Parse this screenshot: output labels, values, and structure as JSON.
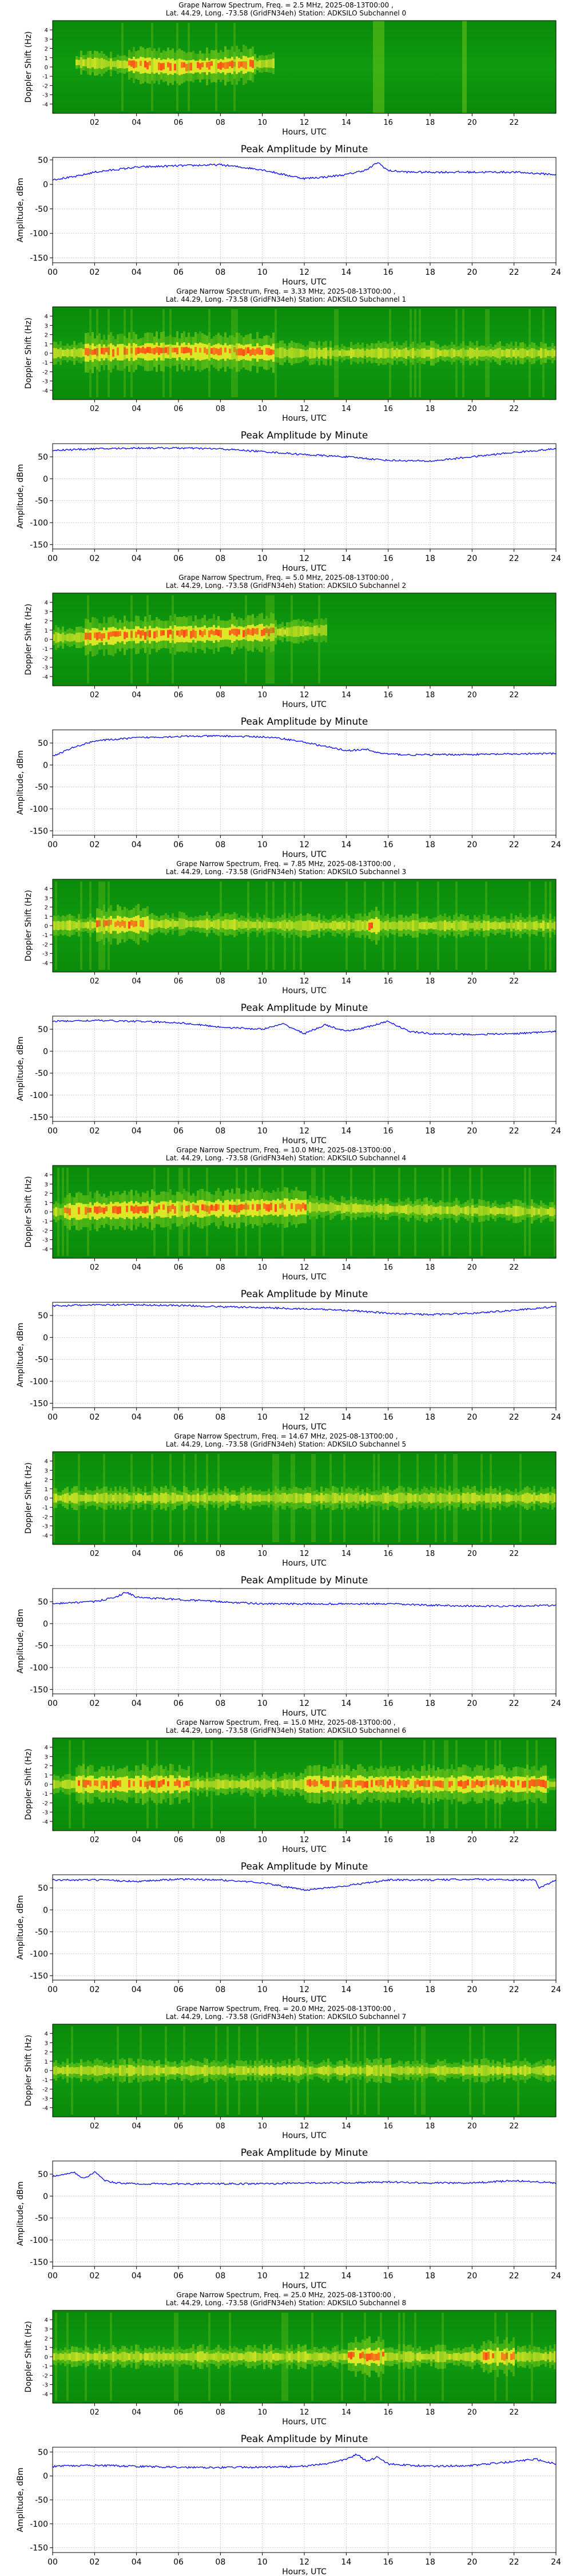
{
  "colors": {
    "spec_low": "#0a7a0a",
    "spec_mid": "#6cc419",
    "spec_high": "#f5f02a",
    "spec_peak": "#ff4b16",
    "line": "#0000ff",
    "grid": "#c8c8c8",
    "axes": "#000000"
  },
  "common": {
    "spec_ylabel": "Doppler Shift (Hz)",
    "spec_xlabel": "Hours, UTC",
    "spec_xticks": [
      "02",
      "04",
      "06",
      "08",
      "10",
      "12",
      "14",
      "16",
      "18",
      "20",
      "22"
    ],
    "spec_yticks": [
      "4",
      "3",
      "2",
      "1",
      "0",
      "-1",
      "-2",
      "-3",
      "-4"
    ],
    "amp_title": "Peak Amplitude by Minute",
    "amp_ylabel": "Amplitude, dBm",
    "amp_xlabel": "Hours, UTC",
    "amp_xticks": [
      "00",
      "02",
      "04",
      "06",
      "08",
      "10",
      "12",
      "14",
      "16",
      "18",
      "20",
      "22",
      "24"
    ],
    "amp_yticks": [
      "50",
      "0",
      "-50",
      "-100",
      "-150"
    ]
  },
  "panels": [
    {
      "title1": "Grape Narrow Spectrum, Freq. = 2.5 MHz, 2025-08-13T00:00 ,",
      "title2": "Lat. 44.29, Long. -73.58 (GridFN34eh) Station: ADKSILO Subchannel 0"
    },
    {
      "title1": "Grape Narrow Spectrum, Freq. = 3.33 MHz, 2025-08-13T00:00 ,",
      "title2": "Lat. 44.29, Long. -73.58 (GridFN34eh) Station: ADKSILO Subchannel 1"
    },
    {
      "title1": "Grape Narrow Spectrum, Freq. = 5.0 MHz, 2025-08-13T00:00 ,",
      "title2": "Lat. 44.29, Long. -73.58 (GridFN34eh) Station: ADKSILO Subchannel 2"
    },
    {
      "title1": "Grape Narrow Spectrum, Freq. = 7.85 MHz, 2025-08-13T00:00 ,",
      "title2": "Lat. 44.29, Long. -73.58 (GridFN34eh) Station: ADKSILO Subchannel 3"
    },
    {
      "title1": "Grape Narrow Spectrum, Freq. = 10.0 MHz, 2025-08-13T00:00 ,",
      "title2": "Lat. 44.29, Long. -73.58 (GridFN34eh) Station: ADKSILO Subchannel 4"
    },
    {
      "title1": "Grape Narrow Spectrum, Freq. = 14.67 MHz, 2025-08-13T00:00 ,",
      "title2": "Lat. 44.29, Long. -73.58 (GridFN34eh) Station: ADKSILO Subchannel 5"
    },
    {
      "title1": "Grape Narrow Spectrum, Freq. = 15.0 MHz, 2025-08-13T00:00 ,",
      "title2": "Lat. 44.29, Long. -73.58 (GridFN34eh) Station: ADKSILO Subchannel 6"
    },
    {
      "title1": "Grape Narrow Spectrum, Freq. = 20.0 MHz, 2025-08-13T00:00 ,",
      "title2": "Lat. 44.29, Long. -73.58 (GridFN34eh) Station: ADKSILO Subchannel 7"
    },
    {
      "title1": "Grape Narrow Spectrum, Freq. = 25.0 MHz, 2025-08-13T00:00 ,",
      "title2": "Lat. 44.29, Long. -73.58 (GridFN34eh) Station: ADKSILO Subchannel 8"
    }
  ],
  "chart_data": [
    {
      "type": "heatmap",
      "title": "Grape Narrow Spectrum, Freq. = 2.5 MHz, 2025-08-13T00:00 , Lat. 44.29, Long. -73.58 (GridFN34eh) Station: ADKSILO Subchannel 0",
      "xlabel": "Hours, UTC",
      "ylabel": "Doppler Shift (Hz)",
      "xlim": [
        0,
        24
      ],
      "ylim": [
        -5,
        5
      ],
      "signal_intervals": [
        [
          1.0,
          10.5
        ]
      ],
      "trace_doppler_hz": [
        [
          1,
          0.5
        ],
        [
          3,
          0.3
        ],
        [
          6,
          0.0
        ],
        [
          8,
          0.1
        ],
        [
          10.5,
          0.4
        ]
      ],
      "peak_intervals": [
        [
          3.5,
          9.5
        ]
      ],
      "interference_intervals": [
        [
          15.2,
          15.8
        ],
        [
          19.5,
          19.7
        ]
      ]
    },
    {
      "type": "line",
      "title": "Peak Amplitude by Minute",
      "xlabel": "Hours, UTC",
      "ylabel": "Amplitude, dBm",
      "xlim": [
        0,
        24
      ],
      "ylim": [
        -160,
        55
      ],
      "grid": true,
      "x": [
        0,
        1,
        2,
        4,
        6,
        8,
        9,
        10,
        11,
        12,
        13,
        14,
        15,
        15.5,
        16,
        17,
        18,
        20,
        22,
        24
      ],
      "y": [
        10,
        15,
        25,
        35,
        38,
        40,
        35,
        30,
        20,
        12,
        15,
        20,
        30,
        45,
        28,
        25,
        25,
        25,
        25,
        20
      ]
    },
    {
      "type": "heatmap",
      "title": "Grape Narrow Spectrum, Freq. = 3.33 MHz, 2025-08-13T00:00 , Lat. 44.29, Long. -73.58 (GridFN34eh) Station: ADKSILO Subchannel 1",
      "xlabel": "Hours, UTC",
      "ylabel": "Doppler Shift (Hz)",
      "xlim": [
        0,
        24
      ],
      "ylim": [
        -5,
        5
      ],
      "signal_intervals": [
        [
          0,
          24
        ]
      ],
      "trace_doppler_hz": [
        [
          0,
          0.0
        ],
        [
          6,
          0.2
        ],
        [
          12,
          0.0
        ],
        [
          18,
          0.0
        ],
        [
          24,
          0.0
        ]
      ],
      "peak_intervals": [
        [
          1.5,
          10.5
        ]
      ],
      "interference_intervals": []
    },
    {
      "type": "line",
      "title": "Peak Amplitude by Minute",
      "xlabel": "Hours, UTC",
      "ylabel": "Amplitude, dBm",
      "xlim": [
        0,
        24
      ],
      "ylim": [
        -160,
        80
      ],
      "grid": true,
      "x": [
        0,
        2,
        4,
        6,
        8,
        10,
        12,
        14,
        16,
        18,
        20,
        22,
        24
      ],
      "y": [
        65,
        68,
        70,
        70,
        68,
        62,
        55,
        50,
        42,
        40,
        50,
        60,
        68
      ]
    },
    {
      "type": "heatmap",
      "title": "Grape Narrow Spectrum, Freq. = 5.0 MHz, 2025-08-13T00:00 , Lat. 44.29, Long. -73.58 (GridFN34eh) Station: ADKSILO Subchannel 2",
      "xlabel": "Hours, UTC",
      "ylabel": "Doppler Shift (Hz)",
      "xlim": [
        0,
        24
      ],
      "ylim": [
        -5,
        5
      ],
      "signal_intervals": [
        [
          0,
          13
        ]
      ],
      "trace_doppler_hz": [
        [
          1,
          0.2
        ],
        [
          4,
          0.5
        ],
        [
          8,
          0.6
        ],
        [
          11,
          0.8
        ],
        [
          13,
          1.0
        ]
      ],
      "peak_intervals": [
        [
          1.5,
          10.5
        ]
      ],
      "interference_intervals": []
    },
    {
      "type": "line",
      "title": "Peak Amplitude by Minute",
      "xlabel": "Hours, UTC",
      "ylabel": "Amplitude, dBm",
      "xlim": [
        0,
        24
      ],
      "ylim": [
        -160,
        80
      ],
      "grid": true,
      "x": [
        0,
        1,
        2,
        4,
        6,
        8,
        10,
        11,
        12,
        13,
        14,
        15,
        15.5,
        16,
        17,
        20,
        24
      ],
      "y": [
        20,
        40,
        55,
        62,
        65,
        66,
        64,
        60,
        52,
        42,
        33,
        35,
        28,
        25,
        23,
        24,
        26
      ]
    },
    {
      "type": "heatmap",
      "title": "Grape Narrow Spectrum, Freq. = 7.85 MHz, 2025-08-13T00:00 , Lat. 44.29, Long. -73.58 (GridFN34eh) Station: ADKSILO Subchannel 3",
      "xlabel": "Hours, UTC",
      "ylabel": "Doppler Shift (Hz)",
      "xlim": [
        0,
        24
      ],
      "ylim": [
        -5,
        5
      ],
      "signal_intervals": [
        [
          0,
          24
        ]
      ],
      "trace_doppler_hz": [
        [
          0,
          0.0
        ],
        [
          6,
          0.2
        ],
        [
          12,
          0.0
        ],
        [
          24,
          0.0
        ]
      ],
      "peak_intervals": [
        [
          2.0,
          4.5
        ],
        [
          15.0,
          15.5
        ]
      ],
      "interference_intervals": []
    },
    {
      "type": "line",
      "title": "Peak Amplitude by Minute",
      "xlabel": "Hours, UTC",
      "ylabel": "Amplitude, dBm",
      "xlim": [
        0,
        24
      ],
      "ylim": [
        -160,
        80
      ],
      "grid": true,
      "x": [
        0,
        2,
        4,
        6,
        8,
        10,
        11,
        12,
        13,
        14,
        15,
        16,
        17,
        18,
        20,
        22,
        24
      ],
      "y": [
        68,
        70,
        68,
        65,
        55,
        50,
        62,
        40,
        60,
        45,
        55,
        68,
        45,
        40,
        38,
        40,
        45
      ]
    },
    {
      "type": "heatmap",
      "title": "Grape Narrow Spectrum, Freq. = 10.0 MHz, 2025-08-13T00:00 , Lat. 44.29, Long. -73.58 (GridFN34eh) Station: ADKSILO Subchannel 4",
      "xlabel": "Hours, UTC",
      "ylabel": "Doppler Shift (Hz)",
      "xlim": [
        0,
        24
      ],
      "ylim": [
        -5,
        5
      ],
      "signal_intervals": [
        [
          0,
          24
        ]
      ],
      "trace_doppler_hz": [
        [
          0,
          0.0
        ],
        [
          6,
          0.3
        ],
        [
          12,
          0.5
        ],
        [
          18,
          0.2
        ],
        [
          24,
          0.0
        ]
      ],
      "peak_intervals": [
        [
          0.5,
          12.0
        ]
      ],
      "interference_intervals": []
    },
    {
      "type": "line",
      "title": "Peak Amplitude by Minute",
      "xlabel": "Hours, UTC",
      "ylabel": "Amplitude, dBm",
      "xlim": [
        0,
        24
      ],
      "ylim": [
        -160,
        80
      ],
      "grid": true,
      "x": [
        0,
        2,
        4,
        6,
        8,
        10,
        12,
        14,
        16,
        18,
        20,
        22,
        24
      ],
      "y": [
        72,
        74,
        74,
        73,
        70,
        68,
        65,
        62,
        55,
        52,
        55,
        62,
        70
      ]
    },
    {
      "type": "heatmap",
      "title": "Grape Narrow Spectrum, Freq. = 14.67 MHz, 2025-08-13T00:00 , Lat. 44.29, Long. -73.58 (GridFN34eh) Station: ADKSILO Subchannel 5",
      "xlabel": "Hours, UTC",
      "ylabel": "Doppler Shift (Hz)",
      "xlim": [
        0,
        24
      ],
      "ylim": [
        -5,
        5
      ],
      "signal_intervals": [
        [
          0,
          24
        ]
      ],
      "trace_doppler_hz": [
        [
          0,
          0.0
        ],
        [
          12,
          0.0
        ],
        [
          24,
          0.0
        ]
      ],
      "peak_intervals": [],
      "interference_intervals": []
    },
    {
      "type": "line",
      "title": "Peak Amplitude by Minute",
      "xlabel": "Hours, UTC",
      "ylabel": "Amplitude, dBm",
      "xlim": [
        0,
        24
      ],
      "ylim": [
        -160,
        80
      ],
      "grid": true,
      "x": [
        0,
        1,
        2,
        3,
        3.5,
        4,
        6,
        8,
        10,
        12,
        14,
        16,
        18,
        20,
        22,
        24
      ],
      "y": [
        45,
        48,
        50,
        60,
        72,
        60,
        55,
        50,
        45,
        45,
        45,
        45,
        42,
        40,
        40,
        42
      ]
    },
    {
      "type": "heatmap",
      "title": "Grape Narrow Spectrum, Freq. = 15.0 MHz, 2025-08-13T00:00 , Lat. 44.29, Long. -73.58 (GridFN34eh) Station: ADKSILO Subchannel 6",
      "xlabel": "Hours, UTC",
      "ylabel": "Doppler Shift (Hz)",
      "xlim": [
        0,
        24
      ],
      "ylim": [
        -5,
        5
      ],
      "signal_intervals": [
        [
          0,
          24
        ]
      ],
      "trace_doppler_hz": [
        [
          0,
          0.0
        ],
        [
          12,
          0.0
        ],
        [
          24,
          0.0
        ]
      ],
      "peak_intervals": [
        [
          1.0,
          6.5
        ],
        [
          12.0,
          23.5
        ]
      ],
      "interference_intervals": []
    },
    {
      "type": "line",
      "title": "Peak Amplitude by Minute",
      "xlabel": "Hours, UTC",
      "ylabel": "Amplitude, dBm",
      "xlim": [
        0,
        24
      ],
      "ylim": [
        -160,
        80
      ],
      "grid": true,
      "x": [
        0,
        2,
        4,
        6,
        8,
        10,
        12,
        14,
        16,
        18,
        20,
        22,
        23,
        23.2,
        24
      ],
      "y": [
        68,
        68,
        65,
        70,
        68,
        62,
        45,
        55,
        68,
        68,
        70,
        68,
        68,
        50,
        68
      ]
    },
    {
      "type": "heatmap",
      "title": "Grape Narrow Spectrum, Freq. = 20.0 MHz, 2025-08-13T00:00 , Lat. 44.29, Long. -73.58 (GridFN34eh) Station: ADKSILO Subchannel 7",
      "xlabel": "Hours, UTC",
      "ylabel": "Doppler Shift (Hz)",
      "xlim": [
        0,
        24
      ],
      "ylim": [
        -5,
        5
      ],
      "signal_intervals": [
        [
          0,
          24
        ]
      ],
      "trace_doppler_hz": [
        [
          0,
          0.0
        ],
        [
          12,
          0.0
        ],
        [
          24,
          0.0
        ]
      ],
      "peak_intervals": [],
      "interference_intervals": []
    },
    {
      "type": "line",
      "title": "Peak Amplitude by Minute",
      "xlabel": "Hours, UTC",
      "ylabel": "Amplitude, dBm",
      "xlim": [
        0,
        24
      ],
      "ylim": [
        -160,
        80
      ],
      "grid": true,
      "x": [
        0,
        1,
        1.5,
        2,
        2.5,
        3,
        4,
        6,
        8,
        10,
        12,
        14,
        16,
        18,
        20,
        22,
        24
      ],
      "y": [
        45,
        55,
        40,
        55,
        35,
        30,
        28,
        28,
        28,
        28,
        30,
        30,
        32,
        30,
        30,
        35,
        30
      ]
    },
    {
      "type": "heatmap",
      "title": "Grape Narrow Spectrum, Freq. = 25.0 MHz, 2025-08-13T00:00 , Lat. 44.29, Long. -73.58 (GridFN34eh) Station: ADKSILO Subchannel 8",
      "xlabel": "Hours, UTC",
      "ylabel": "Doppler Shift (Hz)",
      "xlim": [
        0,
        24
      ],
      "ylim": [
        -5,
        5
      ],
      "signal_intervals": [
        [
          0,
          24
        ]
      ],
      "trace_doppler_hz": [
        [
          0,
          0.0
        ],
        [
          12,
          0.0
        ],
        [
          24,
          0.0
        ]
      ],
      "peak_intervals": [
        [
          14.0,
          15.8
        ],
        [
          20.5,
          22.0
        ]
      ],
      "interference_intervals": []
    },
    {
      "type": "line",
      "title": "Peak Amplitude by Minute",
      "xlabel": "Hours, UTC",
      "ylabel": "Amplitude, dBm",
      "xlim": [
        0,
        24
      ],
      "ylim": [
        -160,
        60
      ],
      "grid": true,
      "x": [
        0,
        2,
        4,
        6,
        8,
        10,
        12,
        13,
        14,
        14.5,
        15,
        15.5,
        16,
        18,
        20,
        22,
        23,
        24
      ],
      "y": [
        20,
        22,
        20,
        18,
        18,
        18,
        20,
        25,
        35,
        45,
        30,
        40,
        25,
        20,
        22,
        30,
        35,
        25
      ]
    }
  ]
}
